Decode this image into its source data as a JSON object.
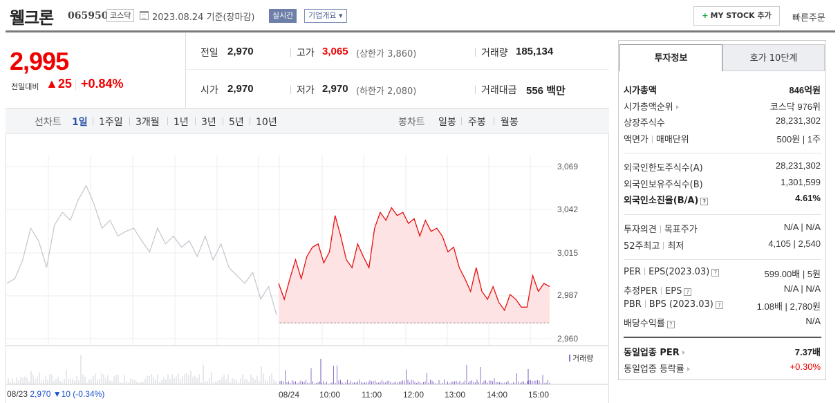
{
  "header": {
    "name": "웰크론",
    "code": "065950",
    "market": "코스닥",
    "date": "2023.08.24  기준(장마감)",
    "realtime_label": "실시간",
    "company_label": "기업개요 ▾",
    "mystock_label": "MY STOCK 추가",
    "quick_order_label": "빠른주문"
  },
  "price": {
    "current": "2,995",
    "prev_label": "전일대비",
    "change": "▲25",
    "change_pct": "+0.84%"
  },
  "stats": {
    "prev_label": "전일",
    "prev_value": "2,970",
    "high_label": "고가",
    "high_value": "3,065",
    "high_limit": "(상한가 3,860)",
    "volume_label": "거래량",
    "volume_value": "185,134",
    "open_label": "시가",
    "open_value": "2,970",
    "low_label": "저가",
    "low_value": "2,970",
    "low_limit": "(하한가 2,080)",
    "amount_label": "거래대금",
    "amount_value": "556 백만"
  },
  "period_bar": {
    "line_label": "선차트",
    "line_periods": [
      "1일",
      "1주일",
      "3개월",
      "1년",
      "3년",
      "5년",
      "10년"
    ],
    "active": "1일",
    "candle_label": "봉차트",
    "candle_periods": [
      "일봉",
      "주봉",
      "월봉"
    ]
  },
  "chart_data": {
    "type": "line",
    "y_ticks": [
      "3,069",
      "3,042",
      "3,015",
      "2,987",
      "2,960"
    ],
    "ylim": [
      2960,
      3069
    ],
    "x_ticks": [
      "08/23",
      "08/24",
      "10:00",
      "11:00",
      "12:00",
      "13:00",
      "14:00",
      "15:00"
    ],
    "volume_legend": "거래량",
    "prev_close_label": "08/23",
    "prev_close_value": "2,970",
    "prev_close_change": "▼10 (-0.34%)",
    "series": [
      {
        "name": "08/23",
        "values": [
          2995,
          2998,
          3010,
          3030,
          3022,
          3005,
          3032,
          3040,
          3035,
          3048,
          3057,
          3045,
          3030,
          3035,
          3025,
          3028,
          3030,
          3022,
          3015,
          3030,
          3020,
          3025,
          3018,
          3022,
          3012,
          3025,
          3010,
          3020,
          3005,
          3000,
          2995,
          3002,
          2985,
          2993,
          2975
        ]
      },
      {
        "name": "08/24",
        "values": [
          2995,
          2985,
          2998,
          3010,
          2998,
          3012,
          3018,
          3020,
          3008,
          3015,
          3038,
          3025,
          3010,
          3005,
          3020,
          3012,
          3005,
          3030,
          3040,
          3035,
          3043,
          3038,
          3040,
          3033,
          3036,
          3025,
          3035,
          3028,
          3030,
          3025,
          3015,
          3018,
          3005,
          2998,
          2990,
          3005,
          2990,
          2985,
          2993,
          2983,
          2978,
          2988,
          2985,
          2980,
          2980,
          3000,
          2990,
          2995,
          2993
        ]
      }
    ]
  },
  "right_panel": {
    "tab_active": "투자정보",
    "tab_inactive": "호가 10단계",
    "rows1": [
      {
        "label": "시가총액",
        "value": "846억원",
        "bold": true
      },
      {
        "label": "시가총액순위",
        "value": "코스닥 976위"
      },
      {
        "label": "상장주식수",
        "value": "28,231,302"
      },
      {
        "label": "액면가 | 매매단위",
        "value": "500원 | 1주"
      }
    ],
    "rows2": [
      {
        "label": "외국인한도주식수(A)",
        "value": "28,231,302"
      },
      {
        "label": "외국인보유주식수(B)",
        "value": "1,301,599"
      },
      {
        "label": "외국인소진율(B/A)",
        "value": "4.61%",
        "bold": true
      }
    ],
    "rows3": [
      {
        "label": "투자의견 | 목표주가",
        "value": "N/A | N/A"
      },
      {
        "label": "52주최고 | 최저",
        "value": "4,105 | 2,540"
      }
    ],
    "rows4": [
      {
        "label": "PER | EPS(2023.03)",
        "value": "599.00배 | 5원"
      },
      {
        "label": "추정PER | EPS",
        "value": "N/A | N/A"
      },
      {
        "label": "PBR | BPS (2023.03)",
        "value": "1.08배 | 2,780원"
      },
      {
        "label": "배당수익률",
        "value": "N/A"
      }
    ],
    "rows5": [
      {
        "label": "동일업종 PER",
        "value": "7.37배",
        "bold": true
      },
      {
        "label": "동일업종 등락률",
        "value": "+0.30%",
        "red": true
      }
    ]
  }
}
